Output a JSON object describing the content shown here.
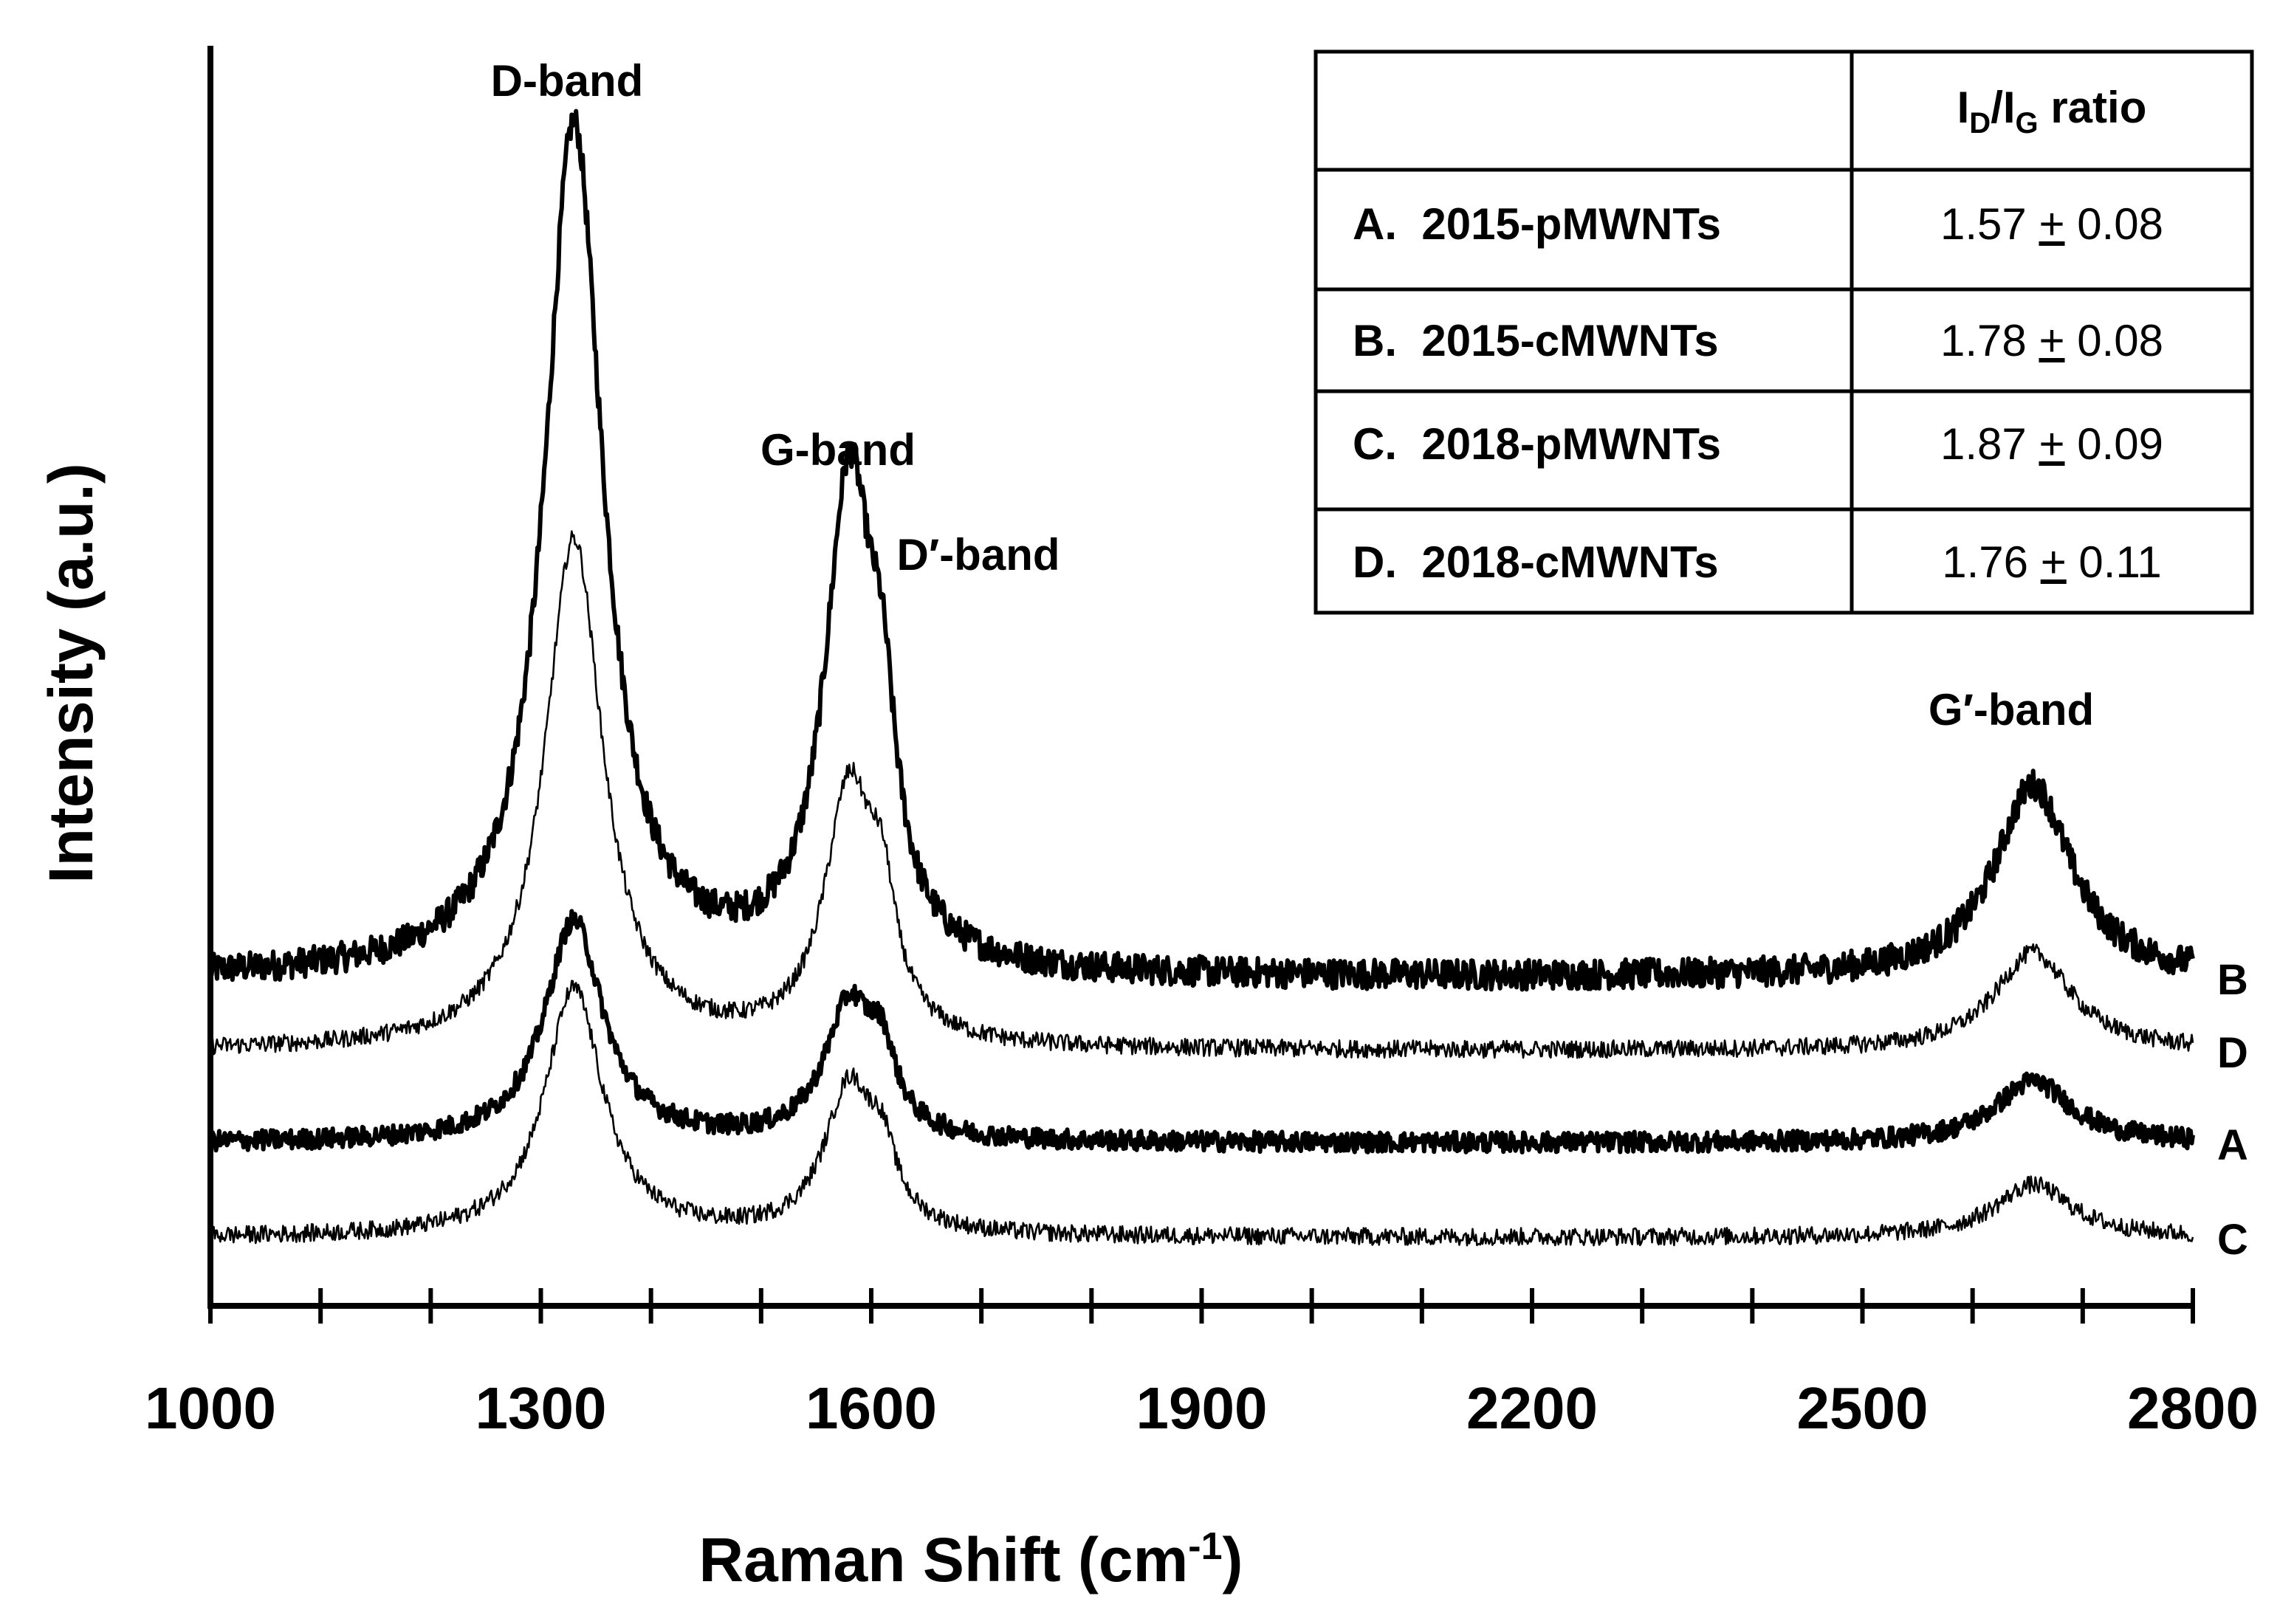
{
  "chart_data": {
    "type": "line",
    "title": "",
    "xlabel": "Raman Shift (cm",
    "xlabel_sup": "-1",
    "xlabel_tail": ")",
    "ylabel": "Intensity (a.u.)",
    "xlim": [
      1000,
      2800
    ],
    "x_ticks": [
      "1000",
      "1300",
      "1600",
      "1900",
      "2200",
      "2500",
      "2800"
    ],
    "x_minor_step": 100,
    "ylim": [
      0,
      100
    ],
    "grid": false,
    "series": [
      {
        "name": "B",
        "offset": 26.0,
        "peak_heights": [
          67.6,
          38.2,
          12.0,
          15.3
        ],
        "noise": 1.2,
        "bold": true
      },
      {
        "name": "D",
        "offset": 20.2,
        "peak_heights": [
          40.5,
          20.0,
          8.0,
          7.8
        ],
        "noise": 0.7,
        "bold": false
      },
      {
        "name": "A",
        "offset": 12.9,
        "peak_heights": [
          17.6,
          10.6,
          5.0,
          4.9
        ],
        "noise": 0.8,
        "bold": true
      },
      {
        "name": "C",
        "offset": 5.4,
        "peak_heights": [
          19.7,
          11.6,
          4.6,
          4.2
        ],
        "noise": 0.7,
        "bold": false
      }
    ],
    "bands": [
      {
        "name": "D-band",
        "position": 1330
      },
      {
        "name": "G-band",
        "position": 1580
      },
      {
        "name": "D′-band",
        "position": 1610
      },
      {
        "name": "G′-band",
        "position": 2655
      }
    ],
    "annotations": {
      "d_band": "D-band",
      "g_band": "G-band",
      "dprime_band": "D′-band",
      "gprime_band": "G′-band"
    },
    "table": {
      "header_main_1": "I",
      "header_sub_1": "D",
      "header_mid": "/I",
      "header_sub_2": "G",
      "header_tail": " ratio",
      "rows": [
        {
          "sample": "A.  2015-pMWNTs",
          "mean": "1.57",
          "pm": "+",
          "err": "0.08"
        },
        {
          "sample": "B.  2015-cMWNTs",
          "mean": "1.78",
          "pm": "+",
          "err": "0.08"
        },
        {
          "sample": "C.  2018-pMWNTs",
          "mean": "1.87",
          "pm": "+",
          "err": "0.09"
        },
        {
          "sample": "D.  2018-cMWNTs",
          "mean": "1.76",
          "pm": "+",
          "err": "0.11"
        }
      ]
    }
  }
}
